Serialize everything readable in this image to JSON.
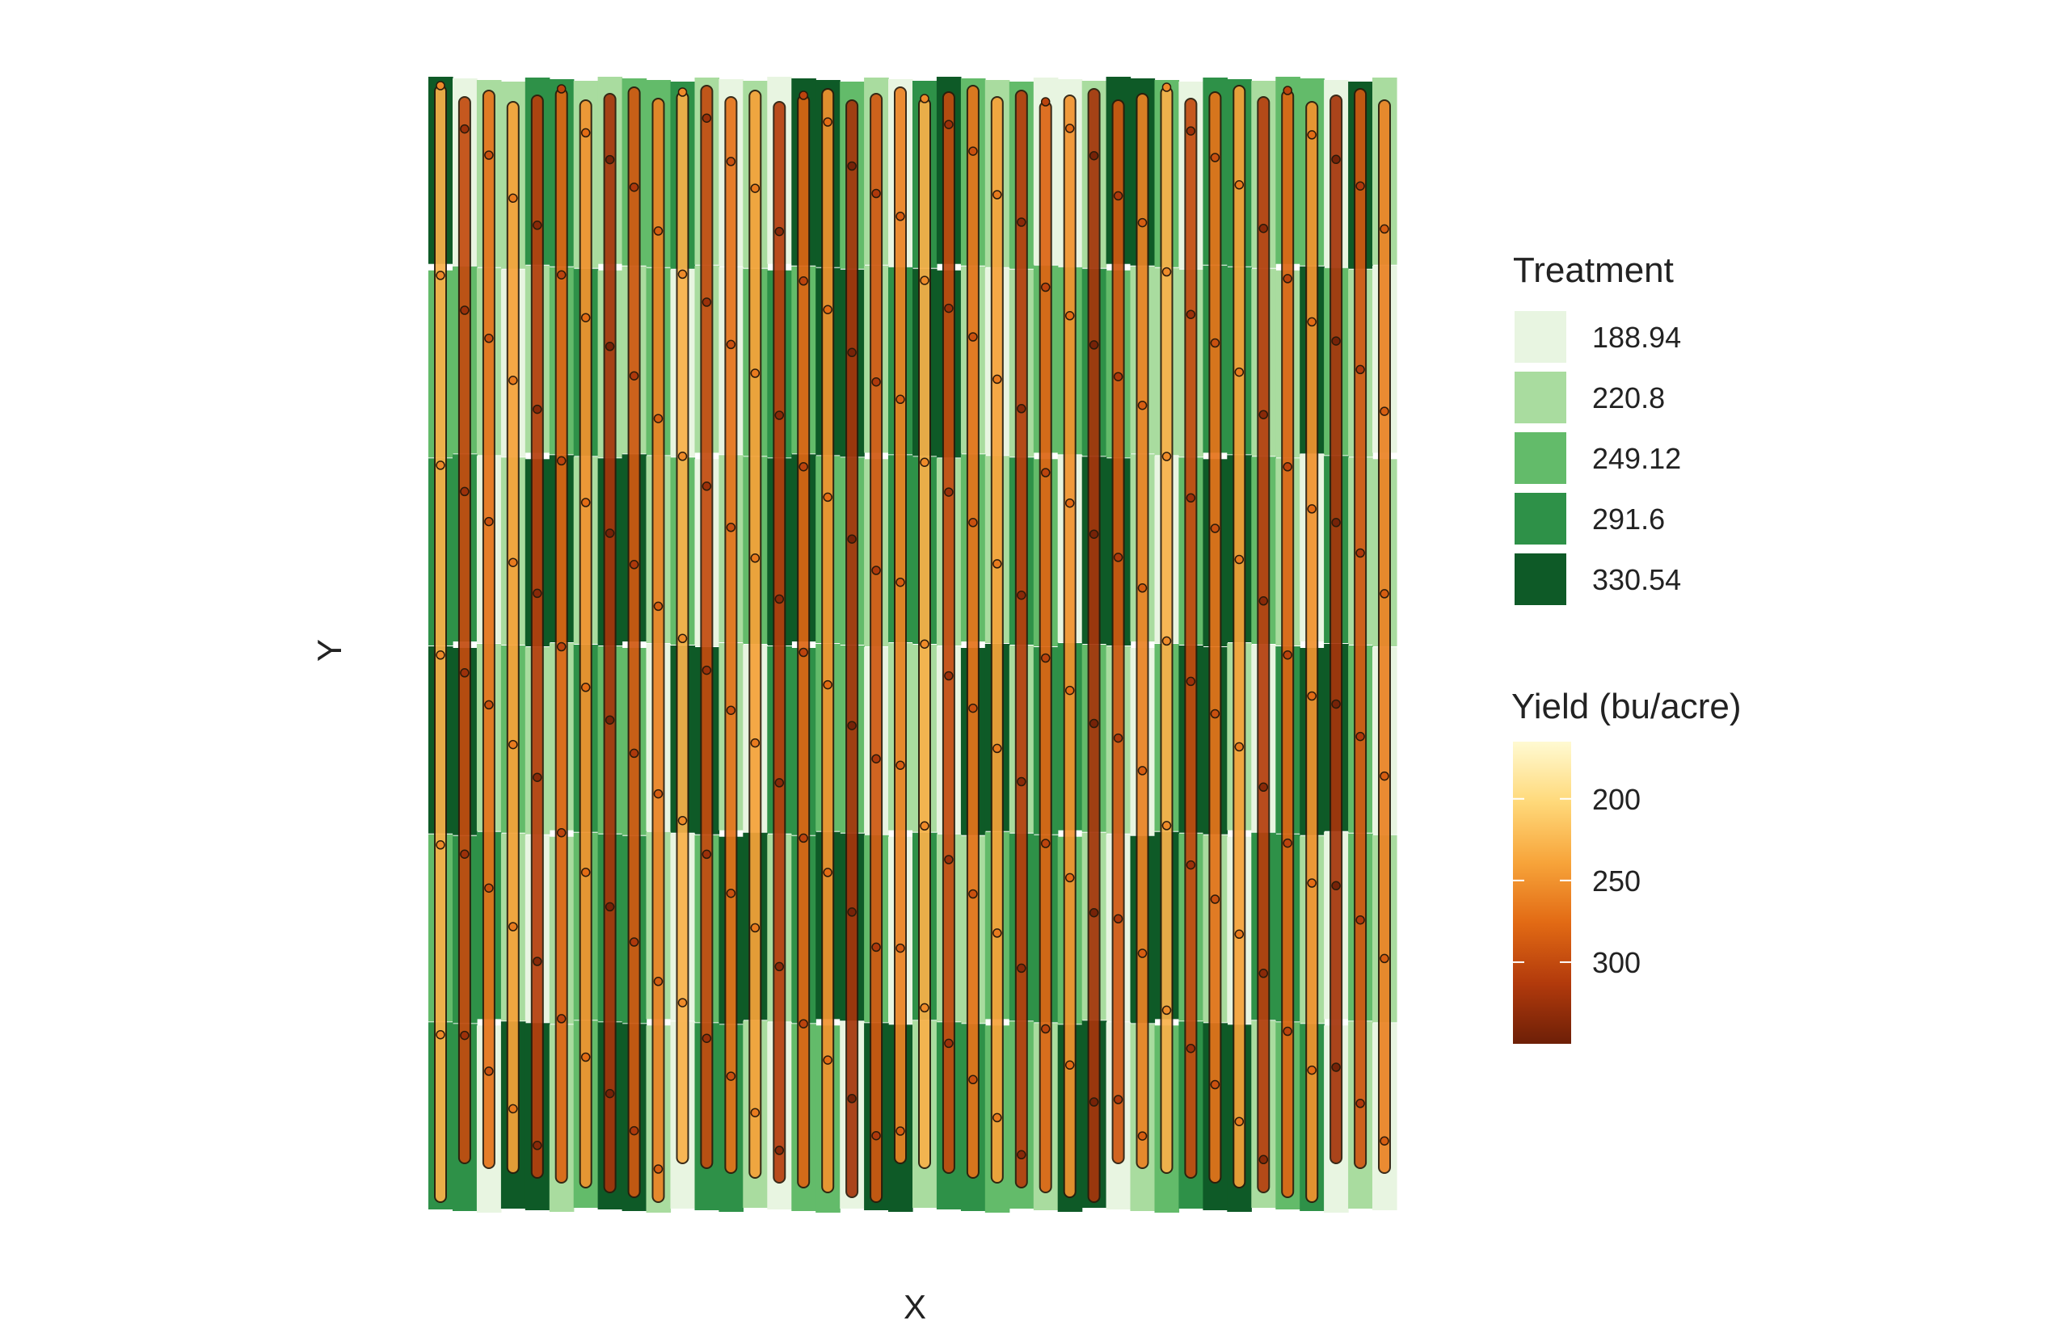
{
  "chart_data": {
    "type": "heatmap",
    "title": "",
    "xlabel": "X",
    "ylabel": "Y",
    "grid": false,
    "legend_placement": "right",
    "treatment_legend": {
      "title": "Treatment",
      "levels": [
        "188.94",
        "220.8",
        "249.12",
        "291.6",
        "330.54"
      ],
      "colors": [
        "#e8f5e1",
        "#a9dc9f",
        "#63bb6a",
        "#2e9148",
        "#0e5a27"
      ]
    },
    "yield_legend": {
      "title": "Yield (bu/acre)",
      "ticks": [
        200,
        250,
        300
      ],
      "range": [
        165,
        350
      ],
      "colors": [
        "#fffad2",
        "#ffd97a",
        "#f7a43a",
        "#e26a14",
        "#b23a0c",
        "#6d1f07"
      ]
    },
    "grid_cells": {
      "n_cols": 40,
      "n_rows": 6,
      "treatment_index_rows": [
        [
          4,
          0,
          1,
          1,
          3,
          3,
          1,
          1,
          2,
          2,
          3,
          1,
          0,
          1,
          0,
          4,
          4,
          2,
          1,
          0,
          3,
          4,
          2,
          1,
          2,
          0,
          0,
          1,
          4,
          4,
          2,
          0,
          3,
          3,
          1,
          2,
          2,
          0,
          4,
          1
        ],
        [
          2,
          2,
          1,
          0,
          1,
          2,
          3,
          1,
          1,
          2,
          0,
          1,
          0,
          2,
          3,
          2,
          4,
          4,
          1,
          3,
          4,
          4,
          1,
          0,
          1,
          2,
          2,
          3,
          2,
          1,
          1,
          1,
          3,
          3,
          1,
          1,
          4,
          2,
          1,
          0
        ],
        [
          3,
          3,
          0,
          1,
          4,
          4,
          1,
          4,
          4,
          1,
          2,
          0,
          1,
          2,
          4,
          4,
          2,
          2,
          1,
          3,
          3,
          1,
          2,
          1,
          3,
          2,
          0,
          4,
          4,
          1,
          0,
          2,
          4,
          4,
          2,
          1,
          0,
          3,
          1,
          1
        ],
        [
          4,
          4,
          1,
          2,
          1,
          1,
          3,
          2,
          2,
          0,
          4,
          4,
          1,
          0,
          3,
          3,
          2,
          2,
          0,
          1,
          1,
          0,
          4,
          4,
          1,
          3,
          3,
          2,
          1,
          0,
          2,
          4,
          4,
          1,
          0,
          3,
          4,
          4,
          2,
          0
        ],
        [
          2,
          3,
          3,
          1,
          0,
          1,
          2,
          3,
          3,
          1,
          0,
          2,
          4,
          4,
          1,
          3,
          4,
          4,
          2,
          0,
          3,
          1,
          1,
          2,
          3,
          3,
          2,
          1,
          0,
          4,
          4,
          2,
          1,
          0,
          3,
          3,
          1,
          0,
          2,
          1
        ],
        [
          3,
          3,
          0,
          4,
          4,
          1,
          2,
          4,
          4,
          1,
          0,
          3,
          3,
          1,
          0,
          2,
          2,
          0,
          4,
          4,
          1,
          3,
          3,
          2,
          2,
          1,
          4,
          4,
          0,
          1,
          2,
          3,
          4,
          4,
          1,
          2,
          3,
          0,
          1,
          0
        ]
      ]
    },
    "yield_points": {
      "n_passes": 40,
      "marker": "circle",
      "typical_range": [
        230,
        320
      ]
    }
  }
}
